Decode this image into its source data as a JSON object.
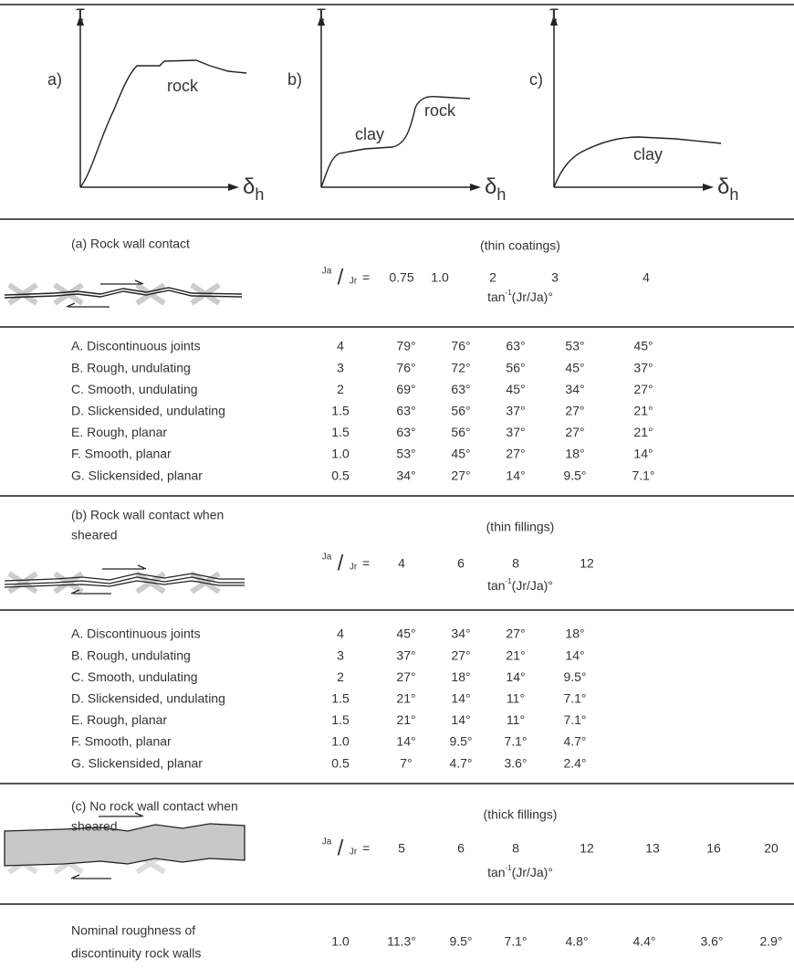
{
  "diagrams": [
    {
      "label": "a)",
      "y_axis": "τ",
      "x_axis": "δ",
      "x_axis_sub": "h",
      "curve_labels": [
        "rock"
      ]
    },
    {
      "label": "b)",
      "y_axis": "τ",
      "x_axis": "δ",
      "x_axis_sub": "h",
      "curve_labels": [
        "clay",
        "rock"
      ]
    },
    {
      "label": "c)",
      "y_axis": "τ",
      "x_axis": "δ",
      "x_axis_sub": "h",
      "curve_labels": [
        "clay"
      ]
    }
  ],
  "sections": [
    {
      "title": [
        "(a)  Rock wall contact"
      ],
      "filling": "(thin coatings)",
      "ratio": {
        "num": "Ja",
        "sep": "/",
        "den": "Jr",
        "eq": "="
      },
      "ja_values": [
        "0.75",
        "1.0",
        "2",
        "3",
        "4"
      ],
      "formula": {
        "pre": "tan",
        "sup": "-1",
        "post": "(Jr/Ja)°"
      },
      "rows": [
        {
          "label": "A.  Discontinuous joints",
          "jr": "4",
          "values": [
            "79°",
            "76°",
            "63°",
            "53°",
            "45°"
          ]
        },
        {
          "label": "B.  Rough, undulating",
          "jr": "3",
          "values": [
            "76°",
            "72°",
            "56°",
            "45°",
            "37°"
          ]
        },
        {
          "label": "C.  Smooth, undulating",
          "jr": "2",
          "values": [
            "69°",
            "63°",
            "45°",
            "34°",
            "27°"
          ]
        },
        {
          "label": "D.  Slickensided, undulating",
          "jr": "1.5",
          "values": [
            "63°",
            "56°",
            "37°",
            "27°",
            "21°"
          ]
        },
        {
          "label": "E.  Rough, planar",
          "jr": "1.5",
          "values": [
            "63°",
            "56°",
            "37°",
            "27°",
            "21°"
          ]
        },
        {
          "label": "F.  Smooth, planar",
          "jr": "1.0",
          "values": [
            "53°",
            "45°",
            "27°",
            "18°",
            "14°"
          ]
        },
        {
          "label": "G.  Slickensided, planar",
          "jr": "0.5",
          "values": [
            "34°",
            "27°",
            "14°",
            "9.5°",
            "7.1°"
          ]
        }
      ]
    },
    {
      "title": [
        "(b)  Rock wall contact when",
        "sheared"
      ],
      "filling": "(thin fillings)",
      "ratio": {
        "num": "Ja",
        "sep": "/",
        "den": "Jr",
        "eq": "="
      },
      "ja_values": [
        "4",
        "6",
        "8",
        "12"
      ],
      "formula": {
        "pre": "tan",
        "sup": "-1",
        "post": "(Jr/Ja)°"
      },
      "rows": [
        {
          "label": "A.  Discontinuous joints",
          "jr": "4",
          "values": [
            "45°",
            "34°",
            "27°",
            "18°"
          ]
        },
        {
          "label": "B.  Rough, undulating",
          "jr": "3",
          "values": [
            "37°",
            "27°",
            "21°",
            "14°"
          ]
        },
        {
          "label": "C.  Smooth, undulating",
          "jr": "2",
          "values": [
            "27°",
            "18°",
            "14°",
            "9.5°"
          ]
        },
        {
          "label": "D.  Slickensided, undulating",
          "jr": "1.5",
          "values": [
            "21°",
            "14°",
            "11°",
            "7.1°"
          ]
        },
        {
          "label": "E.  Rough, planar",
          "jr": "1.5",
          "values": [
            "21°",
            "14°",
            "11°",
            "7.1°"
          ]
        },
        {
          "label": "F.  Smooth, planar",
          "jr": "1.0",
          "values": [
            "14°",
            "9.5°",
            "7.1°",
            "4.7°"
          ]
        },
        {
          "label": "G.  Slickensided, planar",
          "jr": "0.5",
          "values": [
            "7°",
            "4.7°",
            "3.6°",
            "2.4°"
          ]
        }
      ]
    },
    {
      "title": [
        "(c)  No rock wall contact when",
        "sheared"
      ],
      "filling": "(thick fillings)",
      "ratio": {
        "num": "Ja",
        "sep": "/",
        "den": "Jr",
        "eq": "="
      },
      "ja_values": [
        "5",
        "6",
        "8",
        "12",
        "13",
        "16",
        "20"
      ],
      "formula": {
        "pre": "tan",
        "sup": "-1",
        "post": "(Jr/Ja)°"
      },
      "rows": []
    }
  ],
  "final_row": {
    "label": [
      "Nominal roughness of",
      "discontinuity rock walls"
    ],
    "jr": "1.0",
    "values": [
      "11.3°",
      "9.5°",
      "7.1°",
      "4.8°",
      "4.4°",
      "3.6°",
      "2.9°"
    ]
  }
}
